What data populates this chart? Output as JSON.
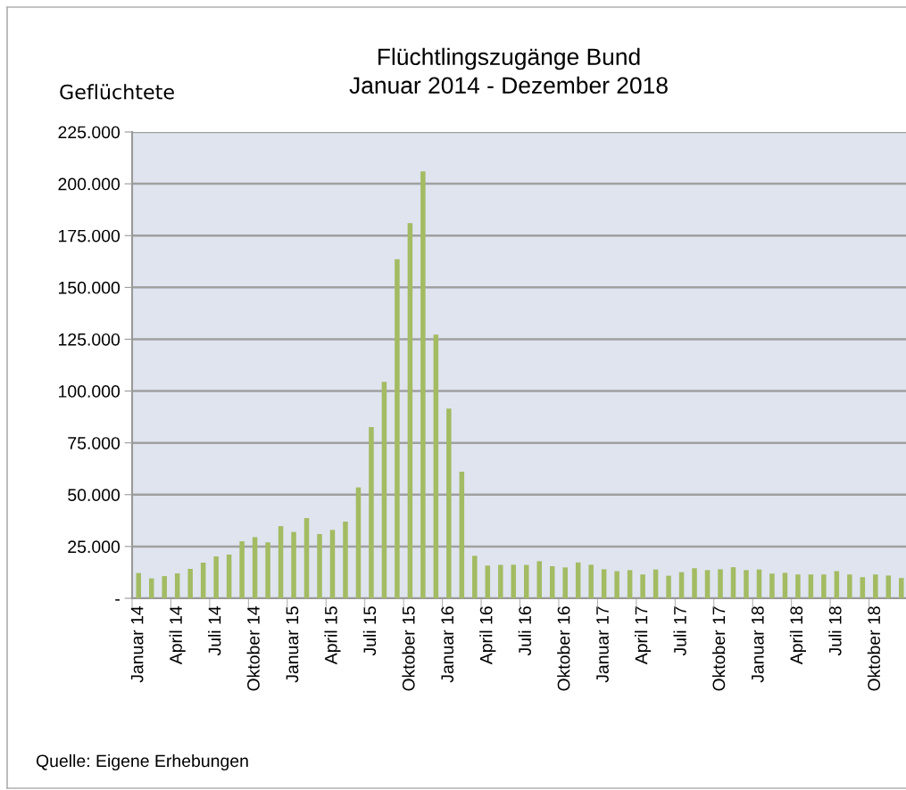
{
  "chart_data": {
    "type": "bar",
    "title": "Flüchtlingszugänge Bund",
    "subtitle": "Januar 2014 - Dezember 2018",
    "ylabel": "Geflüchtete",
    "annotations": [
      "Quelle: Eigene Erhebungen"
    ],
    "categories": [
      "Januar 14",
      null,
      null,
      "April 14",
      null,
      null,
      "Juli 14",
      null,
      null,
      "Oktober 14",
      null,
      null,
      "Januar 15",
      null,
      null,
      "April 15",
      null,
      null,
      "Juli 15",
      null,
      null,
      "Oktober 15",
      null,
      null,
      "Januar 16",
      null,
      null,
      "April 16",
      null,
      null,
      "Juli 16",
      null,
      null,
      "Oktober 16",
      null,
      null,
      "Januar 17",
      null,
      null,
      "April 17",
      null,
      null,
      "Juli 17",
      null,
      null,
      "Oktober 17",
      null,
      null,
      "Januar 18",
      null,
      null,
      "April 18",
      null,
      null,
      "Juli 18",
      null,
      null,
      "Oktober 18",
      null,
      null
    ],
    "values": [
      12200,
      9600,
      10700,
      12000,
      14200,
      17200,
      20200,
      21100,
      27500,
      29500,
      27000,
      34800,
      32000,
      38700,
      31000,
      33000,
      37000,
      53500,
      82600,
      104400,
      163600,
      181000,
      206000,
      127200,
      91500,
      61100,
      20500,
      15800,
      16100,
      16200,
      16100,
      17900,
      15500,
      14900,
      17300,
      16200,
      14000,
      13100,
      13600,
      11500,
      13900,
      10900,
      12600,
      14500,
      13600,
      14000,
      15000,
      13600,
      13900,
      11900,
      12300,
      11500,
      11500,
      11500,
      13100,
      11500,
      10200,
      11500,
      11000,
      9800
    ],
    "color": "#a3bb62",
    "ylim": [
      0,
      225000
    ],
    "yticks": [
      {
        "value": 0,
        "label": "-"
      },
      {
        "value": 25000,
        "label": "25.000"
      },
      {
        "value": 50000,
        "label": "50.000"
      },
      {
        "value": 75000,
        "label": "75.000"
      },
      {
        "value": 100000,
        "label": "100.000"
      },
      {
        "value": 125000,
        "label": "125.000"
      },
      {
        "value": 150000,
        "label": "150.000"
      },
      {
        "value": 175000,
        "label": "175.000"
      },
      {
        "value": 200000,
        "label": "200.000"
      },
      {
        "value": 225000,
        "label": "225.000"
      }
    ],
    "grid": "y"
  }
}
